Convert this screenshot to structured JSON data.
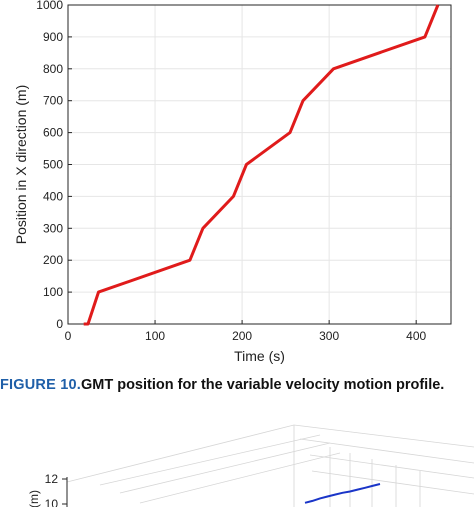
{
  "chart_data": [
    {
      "type": "line",
      "xlabel": "Time (s)",
      "ylabel": "Position in X direction (m)",
      "xlim": [
        0,
        440
      ],
      "ylim": [
        0,
        1000
      ],
      "x_ticks": [
        0,
        100,
        200,
        300,
        400
      ],
      "y_ticks": [
        0,
        100,
        200,
        300,
        400,
        500,
        600,
        700,
        800,
        900,
        1000
      ],
      "grid": true,
      "series": [
        {
          "color": "#e01b1b",
          "x": [
            18,
            23,
            35,
            140,
            155,
            190,
            205,
            255,
            270,
            305,
            410,
            425
          ],
          "y": [
            0,
            0,
            100,
            200,
            300,
            400,
            500,
            600,
            700,
            800,
            900,
            1000
          ]
        }
      ]
    },
    {
      "type": "line",
      "ylabel": "(m)",
      "z_ticks": [
        12,
        10
      ],
      "grid": true,
      "series": [
        {
          "color": "#1a35c8",
          "points3d": [
            [
              0.0,
              10.1
            ],
            [
              0.1,
              10.25
            ],
            [
              0.2,
              10.45
            ],
            [
              0.3,
              10.6
            ],
            [
              0.4,
              10.75
            ],
            [
              0.5,
              10.9
            ],
            [
              0.6,
              11.0
            ],
            [
              0.7,
              11.15
            ],
            [
              0.8,
              11.3
            ],
            [
              0.9,
              11.45
            ],
            [
              1.0,
              11.6
            ]
          ]
        }
      ]
    }
  ],
  "caption": {
    "label": "FIGURE 10.",
    "text": "GMT position for the variable velocity motion profile."
  }
}
